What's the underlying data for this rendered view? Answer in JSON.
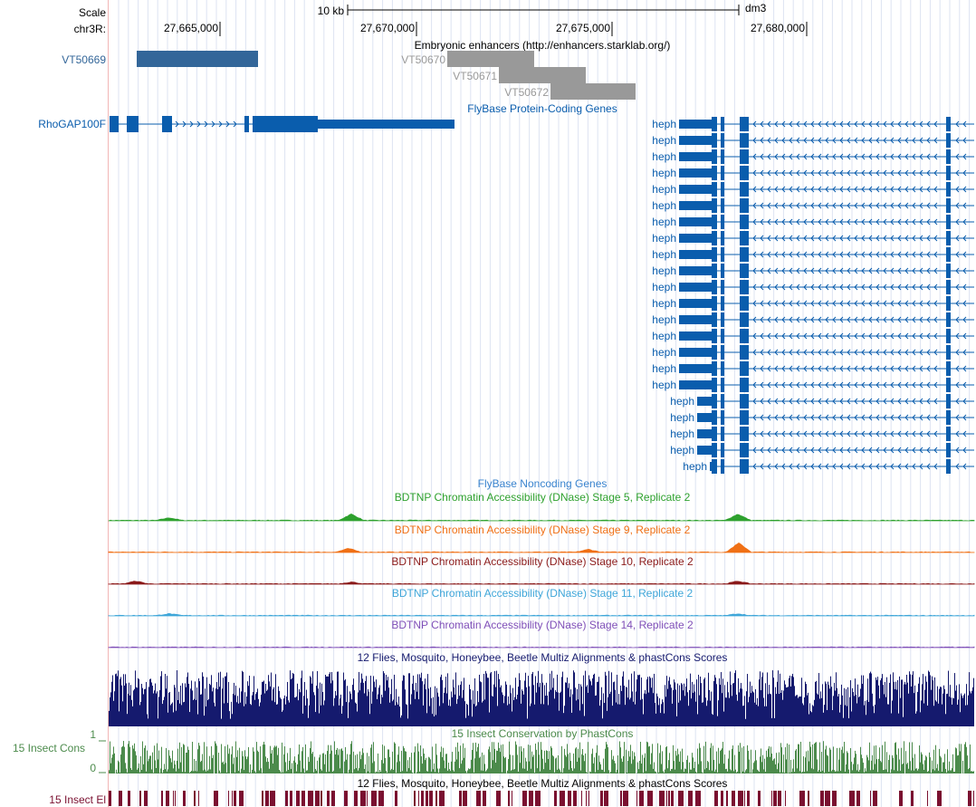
{
  "browser": {
    "assembly": "dm3",
    "ruler": {
      "scale_label": "Scale",
      "scale_value": "10 kb",
      "chrom_label": "chr3R:",
      "ticks": [
        "27,665,000",
        "27,670,000",
        "27,675,000",
        "27,680,000"
      ]
    },
    "tracks": {
      "enhancers": {
        "title": "Embryonic enhancers (http://enhancers.starklab.org/)",
        "items": [
          {
            "name": "VT50669",
            "color": "#336699",
            "selected": true
          },
          {
            "name": "VT50670",
            "color": "#999999"
          },
          {
            "name": "VT50671",
            "color": "#999999"
          },
          {
            "name": "VT50672",
            "color": "#999999"
          }
        ]
      },
      "protein_coding": {
        "title": "FlyBase Protein-Coding Genes",
        "color": "#0A5DAD",
        "genes": {
          "rhogap": "RhoGAP100F",
          "heph": [
            "heph",
            "heph",
            "heph",
            "heph",
            "heph",
            "heph",
            "heph",
            "heph",
            "heph",
            "heph",
            "heph",
            "heph",
            "heph",
            "heph",
            "heph",
            "heph",
            "heph",
            "heph",
            "heph",
            "heph",
            "heph",
            "heph"
          ]
        }
      },
      "noncoding": {
        "title": "FlyBase Noncoding Genes",
        "color": "#3983CE"
      },
      "dnase": [
        {
          "title": "BDTNP Chromatin Accessibility (DNase) Stage 5, Replicate 2",
          "color": "#2EA12E"
        },
        {
          "title": "BDTNP Chromatin Accessibility (DNase) Stage 9, Replicate 2",
          "color": "#F07015"
        },
        {
          "title": "BDTNP Chromatin Accessibility (DNase) Stage 10, Replicate 2",
          "color": "#8B1A1A"
        },
        {
          "title": "BDTNP Chromatin Accessibility (DNase) Stage 11, Replicate 2",
          "color": "#3FA6D9"
        },
        {
          "title": "BDTNP Chromatin Accessibility (DNase) Stage 14, Replicate 2",
          "color": "#7F4FB8"
        }
      ],
      "multiz": {
        "title": "12 Flies, Mosquito, Honeybee, Beetle Multiz Alignments & phastCons Scores",
        "color": "#151A6E"
      },
      "phastcons": {
        "title": "15 Insect Conservation by PhastCons",
        "side_label": "15 Insect Cons",
        "max_label": "1",
        "min_label": "0",
        "color": "#4C8B4C"
      },
      "elements": {
        "title": "12 Flies, Mosquito, Honeybee, Beetle Multiz Alignments & phastCons Scores",
        "side_label": "15 Insect El",
        "color": "#7A1030"
      }
    }
  }
}
